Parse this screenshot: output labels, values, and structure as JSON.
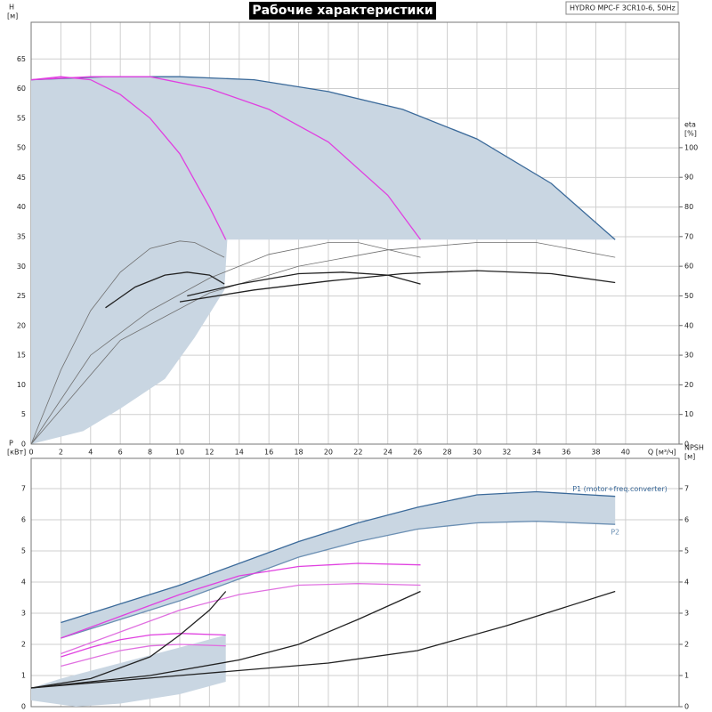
{
  "chart_data": [
    {
      "type": "line",
      "title": "Рабочие характеристики",
      "annotation": "HYDRO MPC-F 3CR10-6, 50Hz",
      "xlabel": "Q [м³/ч]",
      "ylabel": "H",
      "ylabel_unit": "[м]",
      "y2label": "eta",
      "y2label_unit": "[%]",
      "xlim": [
        0,
        43.6
      ],
      "ylim": [
        0,
        71.2
      ],
      "y2lim": [
        0,
        142.3
      ],
      "grid": true,
      "xtick_labels": true,
      "xticks": [
        0,
        2,
        4,
        6,
        8,
        10,
        12,
        14,
        16,
        18,
        20,
        22,
        24,
        26,
        28,
        30,
        32,
        34,
        36,
        38,
        40
      ],
      "yticks": [
        0,
        5,
        10,
        15,
        20,
        25,
        30,
        35,
        40,
        45,
        50,
        55,
        60,
        65
      ],
      "y2ticks": [
        0,
        10,
        20,
        30,
        40,
        50,
        60,
        70,
        80,
        90,
        100
      ],
      "series": [
        {
          "type": "area",
          "color": "#c9d6e2",
          "x": [
            0,
            5,
            10,
            15,
            20,
            25,
            30,
            35,
            39.3,
            13.2,
            13,
            11,
            9,
            6,
            3.5,
            0
          ],
          "values": [
            61.5,
            62,
            62,
            61.5,
            59.5,
            56.5,
            51.5,
            44,
            34.5,
            34.5,
            26,
            18,
            11,
            6,
            2.2,
            0
          ]
        },
        {
          "color": "#3b6a9a",
          "x": [
            0,
            5,
            10,
            15,
            20,
            25,
            30,
            35,
            39.3
          ],
          "values": [
            61.5,
            62,
            62,
            61.5,
            59.5,
            56.5,
            51.5,
            44,
            34.5
          ]
        },
        {
          "color": "#e040e0",
          "x": [
            0,
            4,
            8,
            12,
            16,
            20,
            24,
            26.2
          ],
          "values": [
            61.5,
            62,
            62,
            60,
            56.5,
            51,
            42,
            34.5
          ]
        },
        {
          "color": "#e040e0",
          "x": [
            0,
            2,
            4,
            6,
            8,
            10,
            12,
            13.1
          ],
          "values": [
            61.5,
            62,
            61.5,
            59,
            55,
            49,
            40,
            34.5
          ]
        },
        {
          "color": "#707070",
          "axis": "y2",
          "x": [
            0,
            2,
            4,
            6,
            8,
            10,
            11,
            13
          ],
          "values": [
            0,
            25,
            45,
            58,
            66,
            68.5,
            68,
            63
          ]
        },
        {
          "color": "#707070",
          "axis": "y2",
          "x": [
            0,
            4,
            8,
            12,
            16,
            20,
            22,
            26.2
          ],
          "values": [
            0,
            30,
            45,
            56,
            64,
            68,
            68,
            63
          ]
        },
        {
          "color": "#707070",
          "axis": "y2",
          "x": [
            0,
            6,
            12,
            18,
            24,
            30,
            34,
            39.3
          ],
          "values": [
            0,
            35,
            51,
            60,
            65.5,
            68,
            68,
            63
          ]
        },
        {
          "color": "#222222",
          "axis": "y2",
          "x": [
            5,
            7,
            9,
            10.5,
            12,
            13
          ],
          "values": [
            46,
            53,
            57,
            58,
            57,
            54
          ]
        },
        {
          "color": "#222222",
          "axis": "y2",
          "x": [
            10.5,
            14,
            18,
            21,
            24,
            26.2
          ],
          "values": [
            50,
            54,
            57.5,
            58,
            57,
            54
          ]
        },
        {
          "color": "#222222",
          "axis": "y2",
          "x": [
            10,
            15,
            20,
            25,
            30,
            35,
            39.3
          ],
          "values": [
            48,
            52,
            55,
            57.5,
            58.5,
            57.5,
            54.5
          ]
        }
      ]
    },
    {
      "type": "line",
      "ylabel": "P",
      "ylabel_unit": "[кВт]",
      "y2label": "NPSH",
      "y2label_unit": "[м]",
      "xlim": [
        0,
        43.6
      ],
      "ylim": [
        0,
        7.97
      ],
      "y2lim": [
        0,
        7.97
      ],
      "grid": true,
      "xtick_labels": false,
      "xticks": [
        0,
        2,
        4,
        6,
        8,
        10,
        12,
        14,
        16,
        18,
        20,
        22,
        24,
        26,
        28,
        30,
        32,
        34,
        36,
        38,
        40
      ],
      "yticks": [
        0,
        1,
        2,
        3,
        4,
        5,
        6,
        7
      ],
      "y2ticks": [
        0,
        1,
        2,
        3,
        4,
        5,
        6,
        7
      ],
      "series": [
        {
          "type": "area",
          "color": "#c9d6e2",
          "x": [
            2,
            6,
            10,
            14,
            18,
            22,
            26,
            30,
            34,
            39.3,
            39.3,
            34,
            30,
            26,
            22,
            18,
            14,
            10,
            6,
            2
          ],
          "values": [
            2.7,
            3.3,
            3.9,
            4.6,
            5.3,
            5.9,
            6.4,
            6.8,
            6.9,
            6.75,
            5.85,
            5.95,
            5.9,
            5.7,
            5.3,
            4.8,
            4.1,
            3.4,
            2.8,
            2.2
          ]
        },
        {
          "type": "area",
          "color": "#c9d6e2",
          "x": [
            0,
            2,
            6,
            10,
            13.1,
            13.1,
            10,
            6,
            3,
            0
          ],
          "values": [
            0.6,
            0.9,
            1.4,
            1.9,
            2.3,
            0.8,
            0.4,
            0.1,
            0,
            0.2
          ]
        },
        {
          "name": "P1 (motor+freq.converter)",
          "color": "#3b6a9a",
          "x": [
            2,
            6,
            10,
            14,
            18,
            22,
            26,
            30,
            34,
            39.3
          ],
          "values": [
            2.7,
            3.3,
            3.9,
            4.6,
            5.3,
            5.9,
            6.4,
            6.8,
            6.9,
            6.75
          ]
        },
        {
          "name": "P2",
          "color": "#6b8fb3",
          "x": [
            2,
            6,
            10,
            14,
            18,
            22,
            26,
            30,
            34,
            39.3
          ],
          "values": [
            2.2,
            2.8,
            3.4,
            4.1,
            4.8,
            5.3,
            5.7,
            5.9,
            5.95,
            5.85
          ]
        },
        {
          "color": "#e040e0",
          "x": [
            2,
            6,
            10,
            14,
            18,
            22,
            26.2
          ],
          "values": [
            2.2,
            2.9,
            3.6,
            4.2,
            4.5,
            4.6,
            4.55
          ]
        },
        {
          "color": "#e070e0",
          "x": [
            2,
            6,
            10,
            14,
            18,
            22,
            26.2
          ],
          "values": [
            1.7,
            2.4,
            3.1,
            3.6,
            3.9,
            3.95,
            3.9
          ]
        },
        {
          "color": "#e040e0",
          "x": [
            2,
            4,
            6,
            8,
            10,
            13.1
          ],
          "values": [
            1.6,
            1.9,
            2.15,
            2.3,
            2.35,
            2.3
          ]
        },
        {
          "color": "#e070e0",
          "x": [
            2,
            4,
            6,
            8,
            10,
            13.1
          ],
          "values": [
            1.3,
            1.55,
            1.8,
            1.95,
            2.0,
            1.95
          ]
        },
        {
          "color": "#222222",
          "axis": "y2",
          "x": [
            0,
            4,
            8,
            10,
            12,
            13.1
          ],
          "values": [
            0.6,
            0.9,
            1.6,
            2.3,
            3.1,
            3.7
          ]
        },
        {
          "color": "#222222",
          "axis": "y2",
          "x": [
            0,
            8,
            14,
            18,
            22,
            26.2
          ],
          "values": [
            0.6,
            1.0,
            1.5,
            2.0,
            2.8,
            3.7
          ]
        },
        {
          "color": "#222222",
          "axis": "y2",
          "x": [
            0,
            10,
            20,
            26,
            32,
            39.3
          ],
          "values": [
            0.6,
            1.0,
            1.4,
            1.8,
            2.6,
            3.7
          ]
        }
      ]
    }
  ]
}
